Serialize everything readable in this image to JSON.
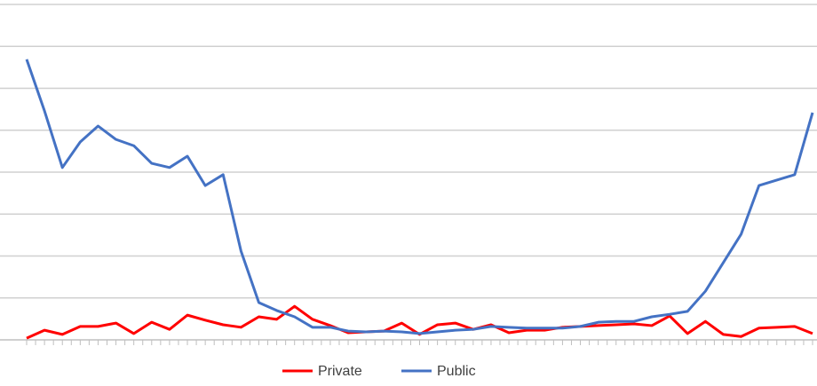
{
  "chart_data": {
    "type": "line",
    "categories": [
      null,
      null,
      null,
      null,
      null,
      null,
      null,
      null,
      null,
      null,
      null,
      null,
      null,
      null,
      null,
      null,
      null,
      null,
      null,
      null,
      null,
      null,
      null,
      null,
      null,
      null,
      null,
      null,
      null,
      null,
      null,
      null,
      null,
      null,
      null,
      null,
      null,
      null,
      null,
      null,
      null,
      null,
      null,
      null,
      null
    ],
    "series": [
      {
        "name": "Private",
        "color": "#ff0000",
        "values": [
          0.04,
          0.23,
          0.13,
          0.32,
          0.32,
          0.4,
          0.15,
          0.42,
          0.25,
          0.59,
          0.47,
          0.36,
          0.3,
          0.55,
          0.49,
          0.8,
          0.49,
          0.34,
          0.17,
          0.19,
          0.21,
          0.4,
          0.13,
          0.36,
          0.4,
          0.25,
          0.36,
          0.17,
          0.23,
          0.23,
          0.3,
          0.32,
          0.34,
          0.36,
          0.38,
          0.34,
          0.57,
          0.15,
          0.44,
          0.13,
          0.08,
          0.28,
          0.3,
          0.32,
          0.15
        ]
      },
      {
        "name": "Public",
        "color": "#4472c4",
        "values": [
          6.69,
          5.46,
          4.11,
          4.72,
          5.1,
          4.78,
          4.63,
          4.21,
          4.11,
          4.38,
          3.68,
          3.94,
          2.12,
          0.89,
          0.7,
          0.55,
          0.3,
          0.3,
          0.21,
          0.19,
          0.21,
          0.19,
          0.15,
          0.19,
          0.23,
          0.25,
          0.32,
          0.3,
          0.28,
          0.28,
          0.28,
          0.32,
          0.42,
          0.44,
          0.44,
          0.55,
          0.61,
          0.68,
          1.16,
          1.84,
          2.52,
          3.68,
          3.81,
          3.94,
          5.42
        ]
      }
    ],
    "ylim": [
      0,
      8
    ],
    "yticks": [
      0,
      1,
      2,
      3,
      4,
      5,
      6,
      7,
      8
    ],
    "grid": true,
    "legend": "bottom"
  }
}
